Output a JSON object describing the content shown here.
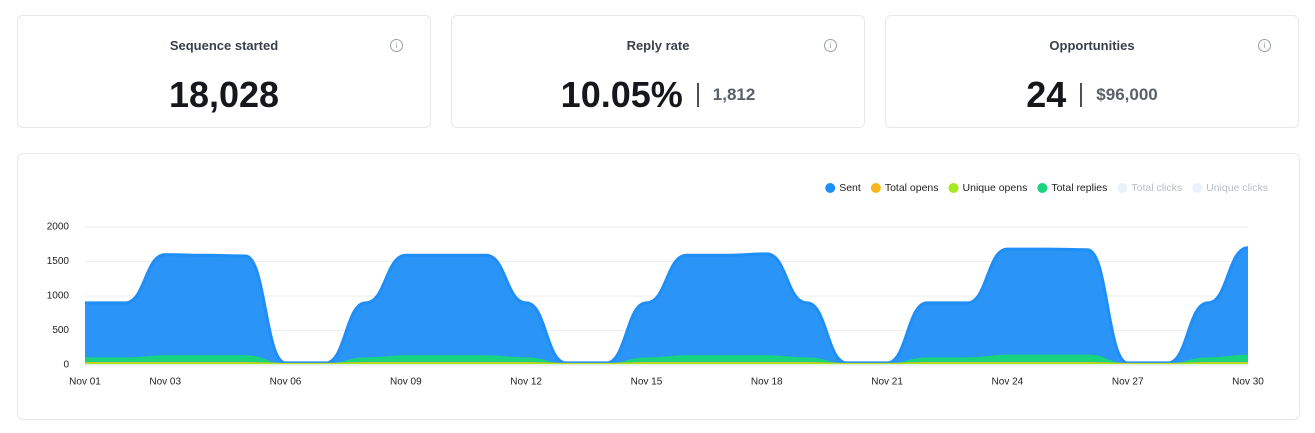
{
  "cards": [
    {
      "title": "Sequence started",
      "value": "18,028"
    },
    {
      "title": "Reply rate",
      "value": "10.05%",
      "secondary": "1,812"
    },
    {
      "title": "Opportunities",
      "value": "24",
      "secondary": "$96,000"
    }
  ],
  "chart_data": {
    "type": "area",
    "categories": [
      "Nov 01",
      null,
      "Nov 03",
      null,
      null,
      "Nov 06",
      null,
      null,
      "Nov 09",
      null,
      null,
      "Nov 12",
      null,
      null,
      "Nov 15",
      null,
      null,
      "Nov 18",
      null,
      null,
      "Nov 21",
      null,
      null,
      "Nov 24",
      null,
      null,
      "Nov 27",
      null,
      null,
      "Nov 30"
    ],
    "series": [
      {
        "name": "Sent",
        "color": "#1f8ef7",
        "values": [
          900,
          900,
          1600,
          1590,
          1580,
          30,
          30,
          900,
          1590,
          1590,
          1590,
          900,
          30,
          30,
          900,
          1590,
          1590,
          1610,
          900,
          30,
          30,
          900,
          900,
          1680,
          1680,
          1670,
          30,
          30,
          900,
          1700
        ]
      },
      {
        "name": "Total opens",
        "color": "#f7b718",
        "values": [
          30,
          30,
          30,
          30,
          30,
          20,
          20,
          30,
          30,
          30,
          30,
          30,
          20,
          20,
          30,
          30,
          30,
          30,
          30,
          20,
          20,
          30,
          30,
          30,
          30,
          30,
          20,
          20,
          30,
          30
        ]
      },
      {
        "name": "Unique opens",
        "color": "#a6e81b",
        "values": [
          20,
          20,
          20,
          20,
          20,
          15,
          15,
          20,
          20,
          20,
          20,
          20,
          15,
          15,
          20,
          20,
          20,
          20,
          20,
          15,
          15,
          20,
          20,
          20,
          20,
          20,
          15,
          15,
          20,
          20
        ]
      },
      {
        "name": "Total replies",
        "color": "#18d47f",
        "values": [
          100,
          100,
          130,
          130,
          130,
          10,
          10,
          100,
          130,
          130,
          130,
          100,
          10,
          10,
          100,
          130,
          130,
          130,
          100,
          10,
          10,
          100,
          100,
          140,
          140,
          140,
          10,
          10,
          100,
          140
        ]
      },
      {
        "name": "Total clicks",
        "color": "#e9f2fb",
        "values": [
          0,
          0,
          0,
          0,
          0,
          0,
          0,
          0,
          0,
          0,
          0,
          0,
          0,
          0,
          0,
          0,
          0,
          0,
          0,
          0,
          0,
          0,
          0,
          0,
          0,
          0,
          0,
          0,
          0,
          0
        ]
      },
      {
        "name": "Unique clicks",
        "color": "#e9f2fb",
        "values": [
          0,
          0,
          0,
          0,
          0,
          0,
          0,
          0,
          0,
          0,
          0,
          0,
          0,
          0,
          0,
          0,
          0,
          0,
          0,
          0,
          0,
          0,
          0,
          0,
          0,
          0,
          0,
          0,
          0,
          0
        ]
      }
    ],
    "faded": [
      "Total clicks",
      "Unique clicks"
    ],
    "draw_order": [
      "Sent",
      "Total replies",
      "Total opens",
      "Unique opens",
      "Total clicks",
      "Unique clicks"
    ],
    "ylim": [
      0,
      2000
    ],
    "yticks": [
      0,
      500,
      1000,
      1500,
      2000
    ],
    "grid": true,
    "legend": "top-right"
  }
}
